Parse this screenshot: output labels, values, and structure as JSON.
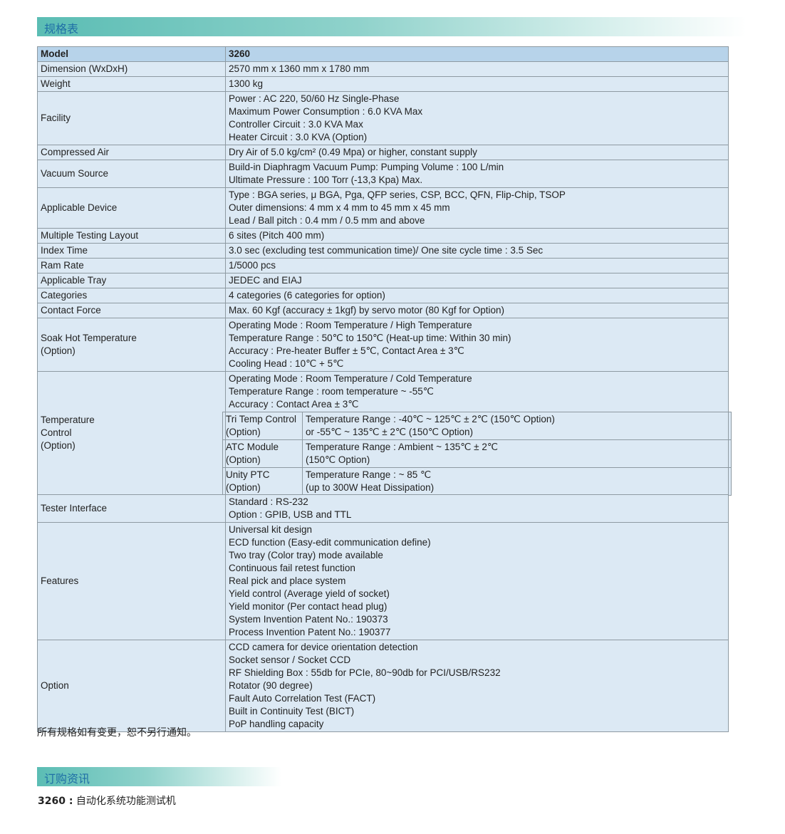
{
  "spec_section_title": "规格表",
  "order_section_title": "订购资讯",
  "note": "所有规格如有变更，恕不另行通知。",
  "order": {
    "model": "3260 :",
    "description": "自动化系统功能测试机"
  },
  "header": {
    "label": "Model",
    "value": "3260"
  },
  "rows": [
    {
      "label": [
        "Dimension (WxDxH)"
      ],
      "lines": [
        "2570 mm x 1360 mm x 1780 mm"
      ]
    },
    {
      "label": [
        "Weight"
      ],
      "lines": [
        "1300 kg"
      ]
    },
    {
      "label": [
        "Facility"
      ],
      "lines": [
        "Power : AC 220, 50/60 Hz Single-Phase",
        "Maximum Power Consumption : 6.0 KVA Max",
        "Controller Circuit : 3.0 KVA Max",
        "Heater Circuit : 3.0 KVA (Option)"
      ]
    },
    {
      "label": [
        "Compressed Air"
      ],
      "lines": [
        "Dry Air of 5.0 kg/cm² (0.49 Mpa) or higher, constant supply"
      ]
    },
    {
      "label": [
        "Vacuum Source"
      ],
      "lines": [
        "Build-in Diaphragm Vacuum Pump: Pumping Volume : 100 L/min",
        "Ultimate Pressure : 100 Torr (-13,3 Kpa) Max."
      ]
    },
    {
      "label": [
        "Applicable Device"
      ],
      "lines": [
        "Type : BGA series, μ BGA, Pga, QFP series, CSP, BCC, QFN, Flip-Chip, TSOP",
        "Outer dimensions:  4 mm x 4 mm to 45 mm x 45 mm",
        "Lead / Ball pitch : 0.4 mm / 0.5 mm and above"
      ]
    },
    {
      "label": [
        "Multiple Testing Layout"
      ],
      "lines": [
        "6 sites (Pitch 400 mm)"
      ]
    },
    {
      "label": [
        "Index Time"
      ],
      "lines": [
        "3.0 sec (excluding test communication time)/ One site cycle time : 3.5 Sec"
      ]
    },
    {
      "label": [
        "Ram Rate"
      ],
      "lines": [
        "1/5000 pcs"
      ]
    },
    {
      "label": [
        "Applicable Tray"
      ],
      "lines": [
        "JEDEC and EIAJ"
      ]
    },
    {
      "label": [
        "Categories"
      ],
      "lines": [
        "4 categories (6 categories for option)"
      ]
    },
    {
      "label": [
        "Contact Force"
      ],
      "lines": [
        "Max. 60 Kgf (accuracy ± 1kgf) by servo motor (80 Kgf for Option)"
      ]
    },
    {
      "label": [
        "Soak Hot Temperature",
        "(Option)"
      ],
      "lines": [
        "Operating Mode : Room Temperature / High Temperature",
        "Temperature Range : 50℃ to 150℃ (Heat-up time: Within 30 min)",
        "Accuracy : Pre-heater Buffer ± 5℃, Contact Area ± 3℃",
        "Cooling Head : 10℃ + 5℃"
      ]
    },
    {
      "label": [
        "Temperature",
        "Control",
        "(Option)"
      ],
      "lines": [
        "Operating Mode : Room Temperature / Cold Temperature",
        "Temperature Range : room temperature ~ -55℃",
        "Accuracy : Contact Area ± 3℃"
      ],
      "sub": [
        {
          "label": [
            "Tri Temp Control",
            "(Option)"
          ],
          "lines": [
            "Temperature Range :  -40℃ ~ 125℃  ± 2℃ (150℃ Option)",
            "or -55℃ ~ 135℃  ± 2℃ (150℃ Option)"
          ]
        },
        {
          "label": [
            "ATC Module",
            "(Option)"
          ],
          "lines": [
            "Temperature Range : Ambient  ~ 135℃ ± 2℃",
            "(150℃ Option)"
          ]
        },
        {
          "label": [
            "Unity PTC",
            "(Option)"
          ],
          "lines": [
            "Temperature Range : ~ 85 ℃",
            "(up to 300W Heat Dissipation)"
          ]
        }
      ]
    },
    {
      "label": [
        "Tester Interface"
      ],
      "lines": [
        "Standard : RS-232",
        "Option : GPIB, USB and TTL"
      ]
    },
    {
      "label": [
        "Features"
      ],
      "lines": [
        "Universal kit design",
        "ECD function (Easy-edit communication define)",
        "Two tray (Color tray) mode available",
        "Continuous fail retest function",
        "Real pick and place system",
        "Yield control (Average yield of socket)",
        "Yield monitor (Per contact head plug)",
        "System Invention Patent No.: 190373",
        "Process Invention Patent No.: 190377"
      ]
    },
    {
      "label": [
        "Option"
      ],
      "lines": [
        "CCD camera for device orientation detection",
        "Socket sensor / Socket CCD",
        "RF Shielding Box : 55db for PCIe, 80~90db for PCI/USB/RS232",
        "Rotator (90 degree)",
        "Fault Auto Correlation Test (FACT)",
        "Built in Continuity Test (BICT)",
        "PoP handling capacity"
      ]
    }
  ]
}
